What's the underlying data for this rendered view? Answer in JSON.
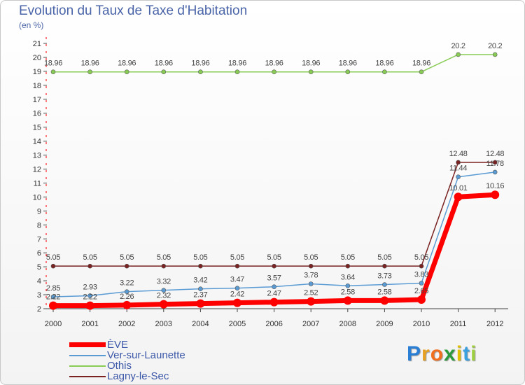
{
  "chart_data": {
    "type": "line",
    "title": "Evolution du Taux de Taxe d'Habitation",
    "subtitle": "(en %)",
    "xlabel": "",
    "ylabel": "",
    "ylim": [
      2,
      21
    ],
    "yticks": [
      2,
      3,
      4,
      5,
      6,
      7,
      8,
      9,
      10,
      11,
      12,
      13,
      14,
      15,
      16,
      17,
      18,
      19,
      20,
      21
    ],
    "x": [
      "2000",
      "2001",
      "2002",
      "2003",
      "2004",
      "2005",
      "2006",
      "2007",
      "2008",
      "2009",
      "2010",
      "2011",
      "2012"
    ],
    "grid": false,
    "legend_position": "bottom-left",
    "series": [
      {
        "name": "Othis",
        "color": "#88cc55",
        "values": [
          18.96,
          18.96,
          18.96,
          18.96,
          18.96,
          18.96,
          18.96,
          18.96,
          18.96,
          18.96,
          18.96,
          20.2,
          20.2
        ],
        "labels": [
          "18.96",
          "18.96",
          "18.96",
          "18.96",
          "18.96",
          "18.96",
          "18.96",
          "18.96",
          "18.96",
          "18.96",
          "18.96",
          "20.2",
          "20.2"
        ]
      },
      {
        "name": "Lagny-le-Sec",
        "color": "#7a2222",
        "values": [
          5.05,
          5.05,
          5.05,
          5.05,
          5.05,
          5.05,
          5.05,
          5.05,
          5.05,
          5.05,
          5.05,
          12.48,
          12.48
        ],
        "labels": [
          "5.05",
          "5.05",
          "5.05",
          "5.05",
          "5.05",
          "5.05",
          "5.05",
          "5.05",
          "5.05",
          "5.05",
          "5.05",
          "12.48",
          "12.48"
        ]
      },
      {
        "name": "Ver-sur-Launette",
        "color": "#5a9bd4",
        "values": [
          2.85,
          2.93,
          3.22,
          3.32,
          3.42,
          3.47,
          3.57,
          3.78,
          3.64,
          3.73,
          3.83,
          11.44,
          11.78
        ],
        "labels": [
          "2.85",
          "2.93",
          "3.22",
          "3.32",
          "3.42",
          "3.47",
          "3.57",
          "3.78",
          "3.64",
          "3.73",
          "3.83",
          "11.44",
          "11.78"
        ]
      },
      {
        "name": "ÈVE",
        "color": "#ff0000",
        "values": [
          2.22,
          2.22,
          2.26,
          2.32,
          2.37,
          2.42,
          2.47,
          2.52,
          2.58,
          2.58,
          2.65,
          10.01,
          10.16
        ],
        "labels": [
          "2.22",
          "2.22",
          "2.26",
          "2.32",
          "2.37",
          "2.42",
          "2.47",
          "2.52",
          "2.58",
          "2.58",
          "2.65",
          "10.01",
          "10.16"
        ]
      }
    ],
    "legend": [
      {
        "name": "ÈVE",
        "color": "#ff0000"
      },
      {
        "name": "Ver-sur-Launette",
        "color": "#5a9bd4"
      },
      {
        "name": "Othis",
        "color": "#88cc55"
      },
      {
        "name": "Lagny-le-Sec",
        "color": "#7a2222"
      }
    ]
  },
  "logo": {
    "letters": [
      "P",
      "r",
      "o",
      "x",
      "i",
      "t",
      "i"
    ],
    "colors": [
      "#2a7fd4",
      "#e8a020",
      "#f07020",
      "#2a9a3a",
      "#e0c000",
      "#3aa0e0",
      "#9fd040"
    ]
  }
}
